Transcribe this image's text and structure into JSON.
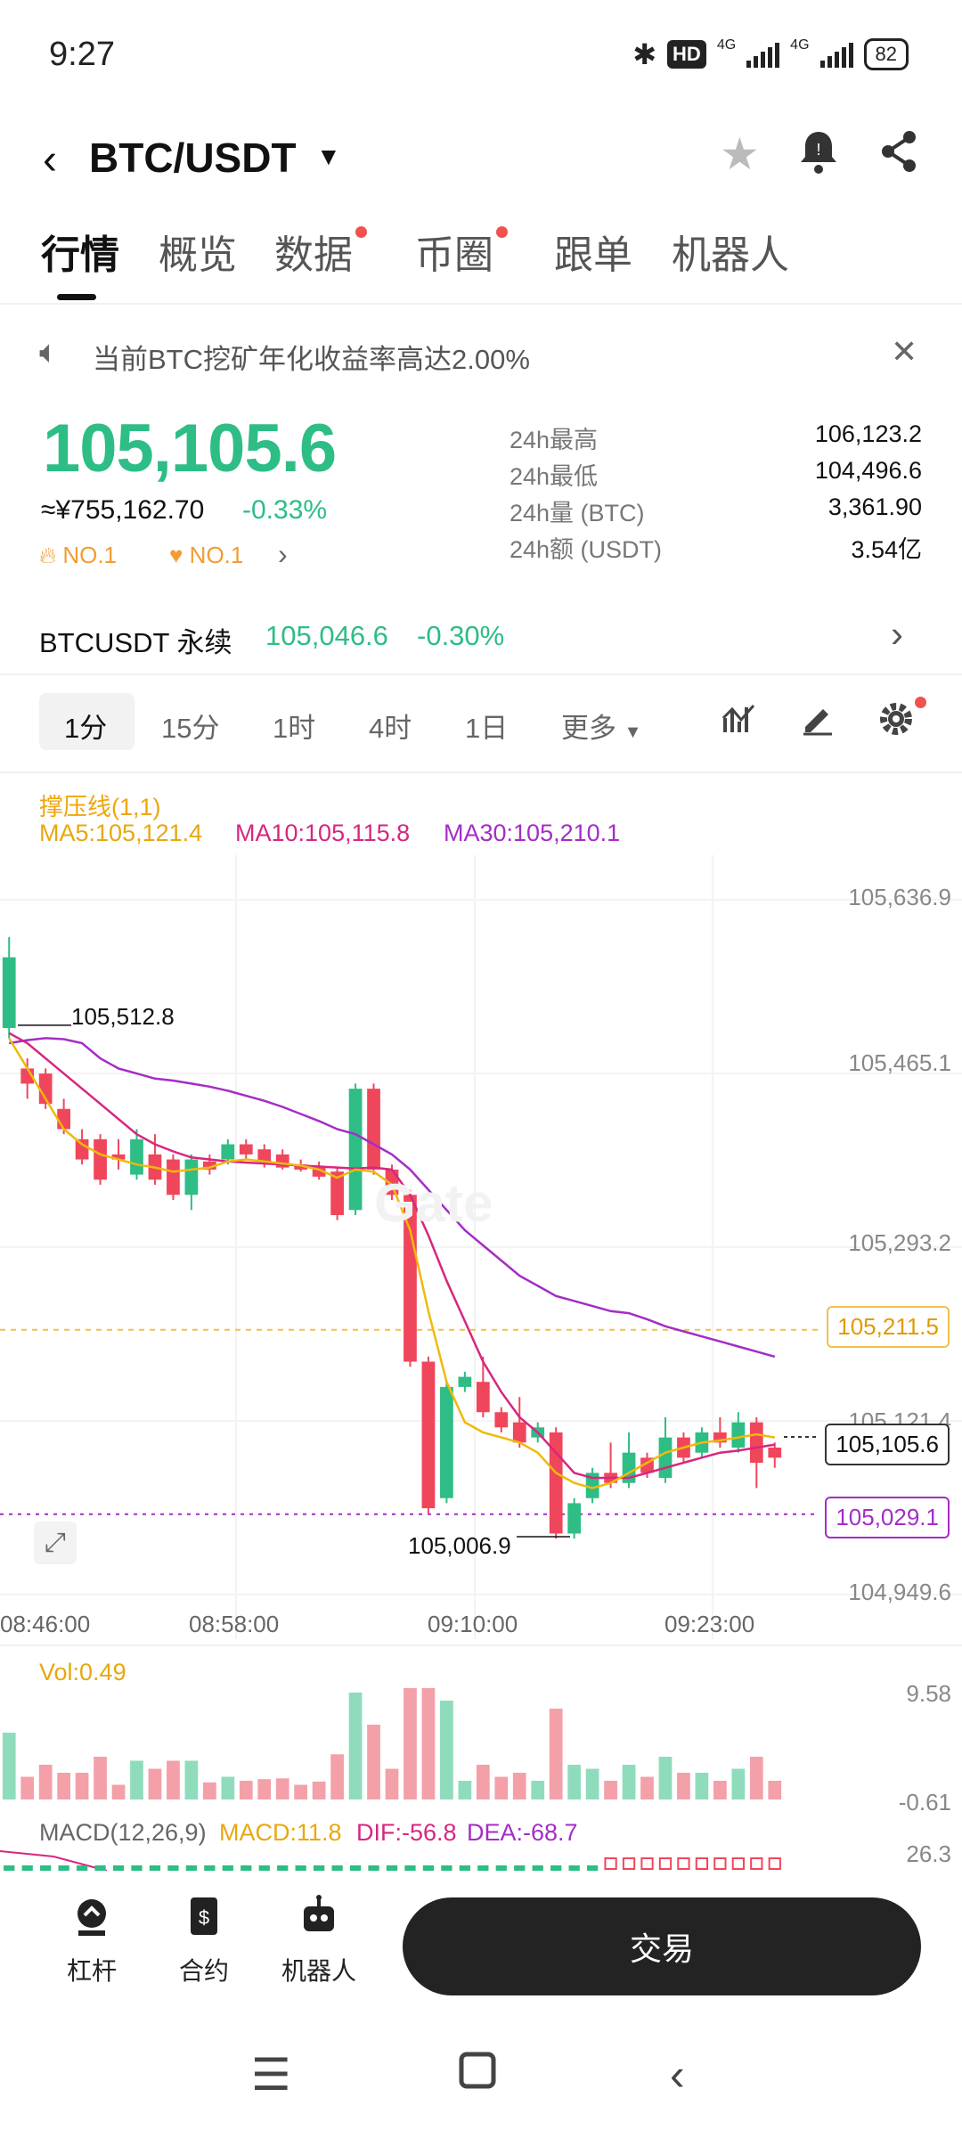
{
  "status_bar": {
    "time": "9:27",
    "hd": "HD",
    "net1": "4G",
    "net2": "4G",
    "battery": "82"
  },
  "header": {
    "pair": "BTC/USDT"
  },
  "tabs": [
    {
      "label": "行情",
      "dot": false
    },
    {
      "label": "概览",
      "dot": false
    },
    {
      "label": "数据",
      "dot": true
    },
    {
      "label": "币圈",
      "dot": true
    },
    {
      "label": "跟单",
      "dot": false
    },
    {
      "label": "机器人",
      "dot": false
    }
  ],
  "notice": {
    "text": "当前BTC挖矿年化收益率高达2.00%"
  },
  "price": {
    "last": "105,105.6",
    "cny": "≈¥755,162.70",
    "change_pct": "-0.33%",
    "rank1": "NO.1",
    "rank2": "NO.1"
  },
  "stats": [
    {
      "label": "24h最高",
      "value": "106,123.2"
    },
    {
      "label": "24h最低",
      "value": "104,496.6"
    },
    {
      "label": "24h量 (BTC)",
      "value": "3,361.90"
    },
    {
      "label": "24h额 (USDT)",
      "value": "3.54亿"
    }
  ],
  "perpetual": {
    "name": "BTCUSDT 永续",
    "price": "105,046.6",
    "pct": "-0.30%"
  },
  "intervals": [
    "1分",
    "15分",
    "1时",
    "4时",
    "1日",
    "更多"
  ],
  "chart": {
    "indicator_title": "撑压线(1,1)",
    "ma5": "MA5:105,121.4",
    "ma10": "MA10:105,115.8",
    "ma30": "MA30:105,210.1",
    "y_labels": [
      "105,636.9",
      "105,465.1",
      "105,293.2",
      "105,121.4",
      "104,949.6"
    ],
    "x_labels": [
      "08:46:00",
      "08:58:00",
      "09:10:00",
      "09:23:00"
    ],
    "high_mark": "105,512.8",
    "low_mark": "105,006.9",
    "tag_resistance": "105,211.5",
    "tag_last": "105,105.6",
    "tag_support": "105,029.1",
    "watermark": "Gate",
    "colors": {
      "up": "#2ebd85",
      "down": "#f0465b",
      "ma5": "#f0b90b",
      "ma10": "#d6277f",
      "ma30": "#a42dc6"
    }
  },
  "chart_data": {
    "type": "candlestick",
    "x_range": [
      "08:46:00",
      "09:27:00"
    ],
    "ylim": [
      104949.6,
      105636.9
    ],
    "candles": [
      {
        "t": "08:46",
        "o": 105510,
        "c": 105580,
        "h": 105600,
        "l": 105500
      },
      {
        "t": "08:47",
        "o": 105470,
        "c": 105455,
        "h": 105480,
        "l": 105440
      },
      {
        "t": "08:48",
        "o": 105465,
        "c": 105435,
        "h": 105470,
        "l": 105430
      },
      {
        "t": "08:49",
        "o": 105430,
        "c": 105410,
        "h": 105440,
        "l": 105405
      },
      {
        "t": "08:50",
        "o": 105400,
        "c": 105380,
        "h": 105410,
        "l": 105375
      },
      {
        "t": "08:51",
        "o": 105400,
        "c": 105360,
        "h": 105405,
        "l": 105355
      },
      {
        "t": "08:52",
        "o": 105385,
        "c": 105380,
        "h": 105400,
        "l": 105370
      },
      {
        "t": "08:53",
        "o": 105365,
        "c": 105400,
        "h": 105410,
        "l": 105360
      },
      {
        "t": "08:54",
        "o": 105385,
        "c": 105360,
        "h": 105405,
        "l": 105355
      },
      {
        "t": "08:55",
        "o": 105380,
        "c": 105345,
        "h": 105385,
        "l": 105340
      },
      {
        "t": "08:56",
        "o": 105345,
        "c": 105380,
        "h": 105385,
        "l": 105330
      },
      {
        "t": "08:57",
        "o": 105378,
        "c": 105370,
        "h": 105385,
        "l": 105365
      },
      {
        "t": "08:58",
        "o": 105380,
        "c": 105395,
        "h": 105400,
        "l": 105375
      },
      {
        "t": "08:59",
        "o": 105395,
        "c": 105385,
        "h": 105400,
        "l": 105380
      },
      {
        "t": "09:00",
        "o": 105390,
        "c": 105378,
        "h": 105395,
        "l": 105372
      },
      {
        "t": "09:01",
        "o": 105385,
        "c": 105372,
        "h": 105390,
        "l": 105370
      },
      {
        "t": "09:02",
        "o": 105375,
        "c": 105370,
        "h": 105380,
        "l": 105368
      },
      {
        "t": "09:03",
        "o": 105372,
        "c": 105363,
        "h": 105378,
        "l": 105360
      },
      {
        "t": "09:04",
        "o": 105368,
        "c": 105325,
        "h": 105372,
        "l": 105320
      },
      {
        "t": "09:05",
        "o": 105330,
        "c": 105450,
        "h": 105455,
        "l": 105325
      },
      {
        "t": "09:06",
        "o": 105450,
        "c": 105370,
        "h": 105455,
        "l": 105365
      },
      {
        "t": "09:07",
        "o": 105370,
        "c": 105345,
        "h": 105375,
        "l": 105340
      },
      {
        "t": "09:08",
        "o": 105345,
        "c": 105180,
        "h": 105350,
        "l": 105175
      },
      {
        "t": "09:09",
        "o": 105180,
        "c": 105035,
        "h": 105185,
        "l": 105030
      },
      {
        "t": "09:10",
        "o": 105045,
        "c": 105155,
        "h": 105160,
        "l": 105040
      },
      {
        "t": "09:11",
        "o": 105155,
        "c": 105165,
        "h": 105170,
        "l": 105150
      },
      {
        "t": "09:12",
        "o": 105160,
        "c": 105130,
        "h": 105185,
        "l": 105125
      },
      {
        "t": "09:13",
        "o": 105130,
        "c": 105115,
        "h": 105135,
        "l": 105110
      },
      {
        "t": "09:14",
        "o": 105120,
        "c": 105100,
        "h": 105145,
        "l": 105095
      },
      {
        "t": "09:15",
        "o": 105105,
        "c": 105115,
        "h": 105120,
        "l": 105100
      },
      {
        "t": "09:16",
        "o": 105110,
        "c": 105010,
        "h": 105115,
        "l": 105005
      },
      {
        "t": "09:17",
        "o": 105010,
        "c": 105040,
        "h": 105045,
        "l": 105005
      },
      {
        "t": "09:18",
        "o": 105045,
        "c": 105070,
        "h": 105075,
        "l": 105040
      },
      {
        "t": "09:19",
        "o": 105070,
        "c": 105060,
        "h": 105100,
        "l": 105055
      },
      {
        "t": "09:20",
        "o": 105060,
        "c": 105090,
        "h": 105110,
        "l": 105055
      },
      {
        "t": "09:21",
        "o": 105085,
        "c": 105070,
        "h": 105090,
        "l": 105065
      },
      {
        "t": "09:22",
        "o": 105065,
        "c": 105105,
        "h": 105125,
        "l": 105060
      },
      {
        "t": "09:23",
        "o": 105105,
        "c": 105085,
        "h": 105110,
        "l": 105080
      },
      {
        "t": "09:24",
        "o": 105090,
        "c": 105110,
        "h": 105115,
        "l": 105085
      },
      {
        "t": "09:25",
        "o": 105110,
        "c": 105100,
        "h": 105125,
        "l": 105095
      },
      {
        "t": "09:26",
        "o": 105095,
        "c": 105120,
        "h": 105130,
        "l": 105090
      },
      {
        "t": "09:27",
        "o": 105120,
        "c": 105080,
        "h": 105125,
        "l": 105055
      },
      {
        "t": "09:28",
        "o": 105095,
        "c": 105085,
        "h": 105100,
        "l": 105075
      }
    ],
    "ma5": [
      105500,
      105470,
      105440,
      105410,
      105395,
      105385,
      105380,
      105375,
      105372,
      105368,
      105370,
      105372,
      105378,
      105380,
      105378,
      105376,
      105374,
      105370,
      105362,
      105370,
      105368,
      105355,
      105310,
      105230,
      105160,
      105120,
      105110,
      105105,
      105100,
      105090,
      105070,
      105060,
      105055,
      105060,
      105070,
      105080,
      105090,
      105095,
      105100,
      105102,
      105105,
      105108,
      105105
    ],
    "ma10": [
      105505,
      105495,
      105480,
      105465,
      105450,
      105435,
      105420,
      105405,
      105395,
      105388,
      105382,
      105380,
      105378,
      105377,
      105376,
      105375,
      105374,
      105373,
      105372,
      105371,
      105372,
      105370,
      105345,
      105305,
      105260,
      105220,
      105180,
      105150,
      105125,
      105110,
      105090,
      105070,
      105065,
      105065,
      105065,
      105070,
      105075,
      105080,
      105085,
      105090,
      105092,
      105095,
      105098
    ],
    "ma30": [
      105495,
      105498,
      105500,
      105499,
      105495,
      105480,
      105470,
      105465,
      105460,
      105458,
      105455,
      105452,
      105448,
      105443,
      105438,
      105432,
      105425,
      105418,
      105410,
      105405,
      105395,
      105385,
      105370,
      105350,
      105330,
      105310,
      105295,
      105280,
      105265,
      105255,
      105245,
      105240,
      105235,
      105230,
      105228,
      105222,
      105215,
      105210,
      105205,
      105200,
      105195,
      105190,
      105185
    ],
    "volume": {
      "ylim": [
        -0.61,
        9.58
      ],
      "label": "Vol:0.49"
    },
    "macd": {
      "label": "MACD(12,26,9)",
      "macd": "MACD:11.8",
      "dif": "DIF:-56.8",
      "dea": "DEA:-68.7",
      "top": "26.3"
    }
  },
  "bottom_nav": [
    {
      "label": "杠杆",
      "icon": "leverage-icon"
    },
    {
      "label": "合约",
      "icon": "contract-icon"
    },
    {
      "label": "机器人",
      "icon": "robot-icon"
    }
  ],
  "trade_button": "交易"
}
